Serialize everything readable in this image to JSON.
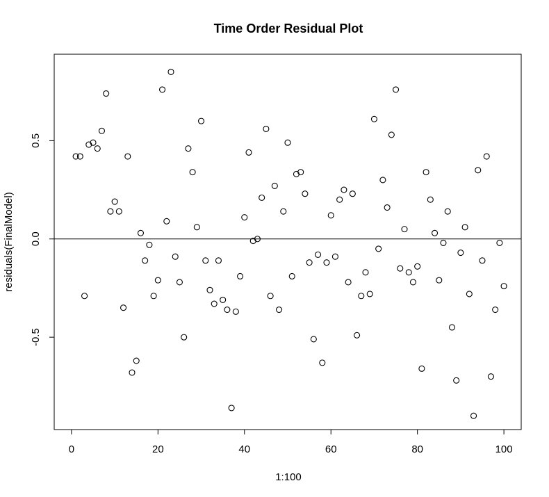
{
  "chart_data": {
    "type": "scatter",
    "title": "Time Order Residual Plot",
    "xlabel": "1:100",
    "ylabel": "residuals(FinalModel)",
    "xlim": [
      -4,
      104
    ],
    "ylim": [
      -0.97,
      0.94
    ],
    "xticks": [
      0,
      20,
      40,
      60,
      80,
      100
    ],
    "xtick_labels": [
      "0",
      "20",
      "40",
      "60",
      "80",
      "100"
    ],
    "yticks": [
      -0.5,
      0.0,
      0.5
    ],
    "ytick_labels": [
      "-0.5",
      "0.0",
      "0.5"
    ],
    "hline": 0,
    "grid": false,
    "legend": "none",
    "point_style": "open-circle",
    "x": [
      1,
      2,
      3,
      4,
      5,
      6,
      7,
      8,
      9,
      10,
      11,
      12,
      13,
      14,
      15,
      16,
      17,
      18,
      19,
      20,
      21,
      22,
      23,
      24,
      25,
      26,
      27,
      28,
      29,
      30,
      31,
      32,
      33,
      34,
      35,
      36,
      37,
      38,
      39,
      40,
      41,
      42,
      43,
      44,
      45,
      46,
      47,
      48,
      49,
      50,
      51,
      52,
      53,
      54,
      55,
      56,
      57,
      58,
      59,
      60,
      61,
      62,
      63,
      64,
      65,
      66,
      67,
      68,
      69,
      70,
      71,
      72,
      73,
      74,
      75,
      76,
      77,
      78,
      79,
      80,
      81,
      82,
      83,
      84,
      85,
      86,
      87,
      88,
      89,
      90,
      91,
      92,
      93,
      94,
      95,
      96,
      97,
      98,
      99,
      100
    ],
    "y": [
      0.42,
      0.42,
      -0.29,
      0.48,
      0.49,
      0.46,
      0.55,
      0.74,
      0.14,
      0.19,
      0.14,
      -0.35,
      0.42,
      -0.68,
      -0.62,
      0.03,
      -0.11,
      -0.03,
      -0.29,
      -0.21,
      0.76,
      0.09,
      0.85,
      -0.09,
      -0.22,
      -0.5,
      0.46,
      0.34,
      0.06,
      0.6,
      -0.11,
      -0.26,
      -0.33,
      -0.11,
      -0.31,
      -0.36,
      -0.86,
      -0.37,
      -0.19,
      0.11,
      0.44,
      -0.01,
      0.0,
      0.21,
      0.56,
      -0.29,
      0.27,
      -0.36,
      0.14,
      0.49,
      -0.19,
      0.33,
      0.34,
      0.23,
      -0.12,
      -0.51,
      -0.08,
      -0.63,
      -0.12,
      0.12,
      -0.09,
      0.2,
      0.25,
      -0.22,
      0.23,
      -0.49,
      -0.29,
      -0.17,
      -0.28,
      0.61,
      -0.05,
      0.3,
      0.16,
      0.53,
      0.76,
      -0.15,
      0.05,
      -0.17,
      -0.22,
      -0.14,
      -0.66,
      0.34,
      0.2,
      0.03,
      -0.21,
      -0.02,
      0.14,
      -0.45,
      -0.72,
      -0.07,
      0.06,
      -0.28,
      -0.9,
      0.35,
      -0.11,
      0.42,
      -0.7,
      -0.36,
      -0.02,
      -0.24
    ]
  }
}
